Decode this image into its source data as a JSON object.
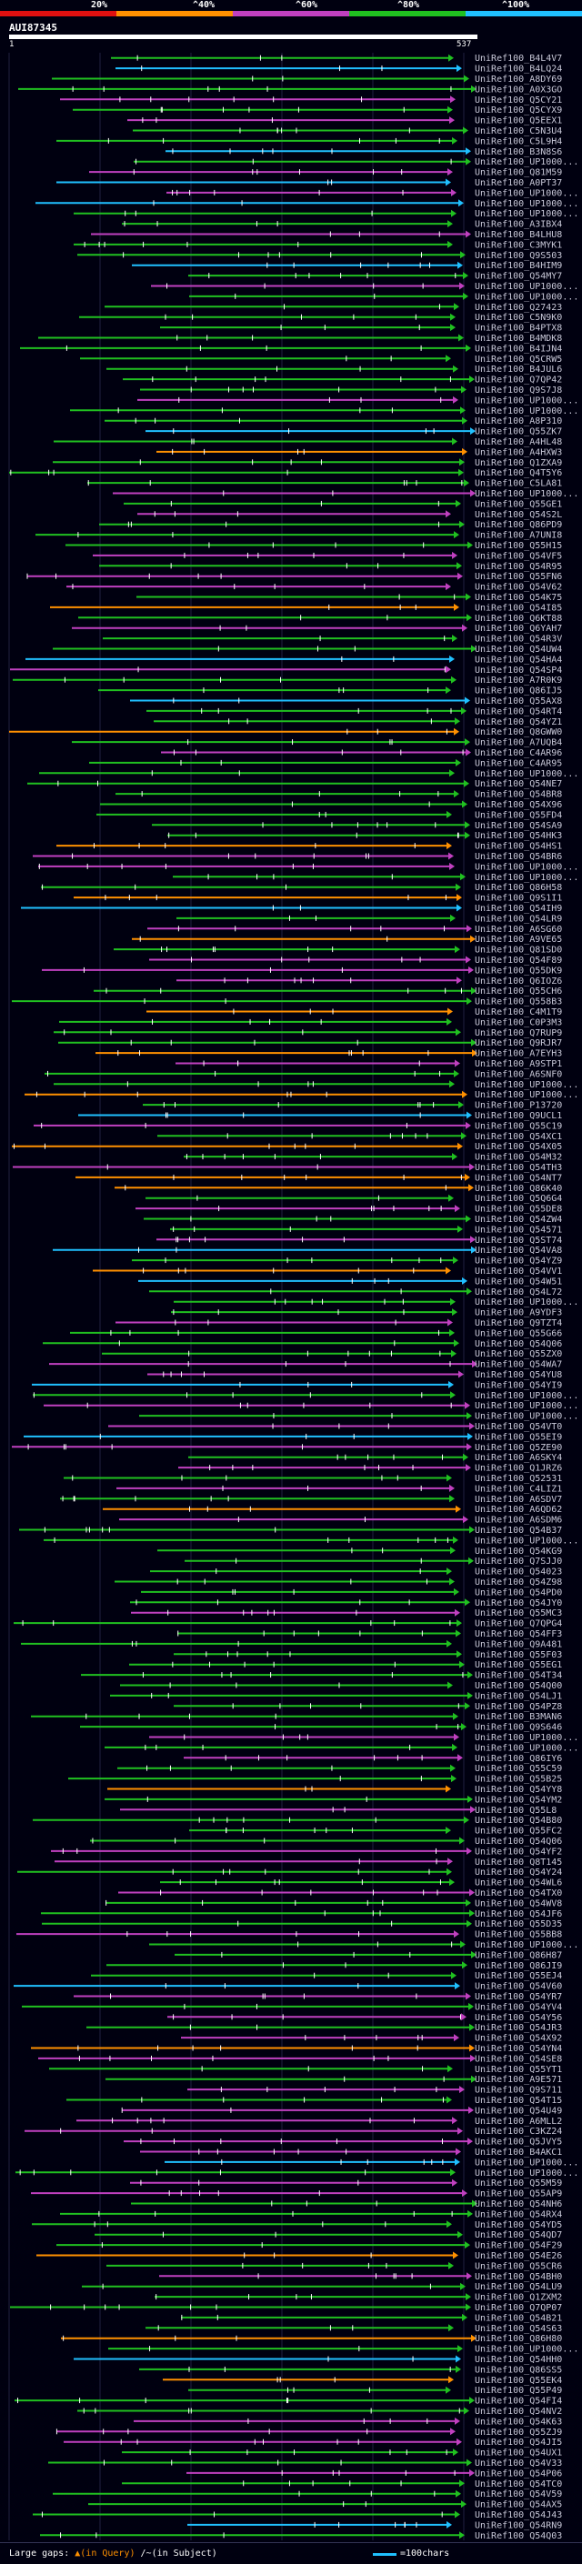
{
  "legend": {
    "labels": [
      "20%",
      "^40%",
      "^60%",
      "^80%",
      "^100%"
    ],
    "colors": [
      "#e01010",
      "#ff9000",
      "#c040c0",
      "#20c020",
      "#20c0ff"
    ]
  },
  "query": {
    "id": "AUI87345",
    "start": "1",
    "end": "537"
  },
  "hits": [
    "UniRef100_B4L4V7",
    "UniRef100_B4LQ24",
    "UniRef100_A8DY69",
    "UniRef100_A0X3GO",
    "UniRef100_Q5CY21",
    "UniRef100_Q5CYX9",
    "UniRef100_Q5EEX1",
    "UniRef100_C5N3U4",
    "UniRef100_C5L9H4",
    "UniRef100_B3N8S6",
    "UniRef100_UP1000...",
    "UniRef100_Q81M59",
    "UniRef100_A0PT37",
    "UniRef100_UP1000...",
    "UniRef100_UP1000...",
    "UniRef100_UP1000...",
    "UniRef100_A3IBX4",
    "UniRef100_B4LHU8",
    "UniRef100_C3MYK1",
    "UniRef100_Q9S503",
    "UniRef100_B4HIM9",
    "UniRef100_Q54MY7",
    "UniRef100_UP1000...",
    "UniRef100_UP1000...",
    "UniRef100_Q27423",
    "UniRef100_C5N9K0",
    "UniRef100_B4PTX8",
    "UniRef100_B4MDK8",
    "UniRef100_B4IJN4",
    "UniRef100_Q5CRW5",
    "UniRef100_B4JUL6",
    "UniRef100_Q7QP42",
    "UniRef100_Q9S7J8",
    "UniRef100_UP1000...",
    "UniRef100_UP1000...",
    "UniRef100_A8P310",
    "UniRef100_Q55ZK7",
    "UniRef100_A4HL48",
    "UniRef100_A4HXW3",
    "UniRef100_Q1ZXA9",
    "UniRef100_Q4T5Y6",
    "UniRef100_C5LA81",
    "UniRef100_UP1000...",
    "UniRef100_Q55GE1",
    "UniRef100_Q54S2L",
    "UniRef100_Q86PD9",
    "UniRef100_A7UNI8",
    "UniRef100_Q55H15",
    "UniRef100_Q54VF5",
    "UniRef100_Q54R95",
    "UniRef100_Q55FN6",
    "UniRef100_Q54V62",
    "UniRef100_Q54K75",
    "UniRef100_Q54I85",
    "UniRef100_Q6KT88",
    "UniRef100_Q6YAH7",
    "UniRef100_Q54R3V",
    "UniRef100_Q54UW4",
    "UniRef100_Q54HA4",
    "UniRef100_Q54SP4",
    "UniRef100_A7R0K9",
    "UniRef100_Q86IJ5",
    "UniRef100_Q55AX8",
    "UniRef100_Q54RT4",
    "UniRef100_Q54YZ1",
    "UniRef100_Q8GWW0",
    "UniRef100_A7UQB4",
    "UniRef100_C4AR96",
    "UniRef100_C4AR95",
    "UniRef100_UP1000...",
    "UniRef100_Q54NE7",
    "UniRef100_Q54BR8",
    "UniRef100_Q54X96",
    "UniRef100_Q55FD4",
    "UniRef100_Q54SA9",
    "UniRef100_Q54HK3",
    "UniRef100_Q54HS1",
    "UniRef100_Q54BR6",
    "UniRef100_UP1000...",
    "UniRef100_UP1000...",
    "UniRef100_Q86H58",
    "UniRef100_Q9S1I1",
    "UniRef100_Q54IH9",
    "UniRef100_Q54LR9",
    "UniRef100_A6SG60",
    "UniRef100_A9VE65",
    "UniRef100_Q81SD0",
    "UniRef100_Q54F89",
    "UniRef100_Q55DK9",
    "UniRef100_Q6IOZ6",
    "UniRef100_Q55CH6",
    "UniRef100_Q558B3",
    "UniRef100_C4M1T9",
    "UniRef100_C0P3M3",
    "UniRef100_Q7RUP9",
    "UniRef100_Q9RJR7",
    "UniRef100_A7EYH3",
    "UniRef100_A9STP1",
    "UniRef100_A6SNF0",
    "UniRef100_UP1000...",
    "UniRef100_UP1000...",
    "UniRef100_P13720",
    "UniRef100_Q9UCL1",
    "UniRef100_Q55C19",
    "UniRef100_Q54XC1",
    "UniRef100_Q54X05",
    "UniRef100_Q54M32",
    "UniRef100_Q54TH3",
    "UniRef100_Q54NT7",
    "UniRef100_Q86K40",
    "UniRef100_Q5Q6G4",
    "UniRef100_Q55DE8",
    "UniRef100_Q54ZW4",
    "UniRef100_Q54571",
    "UniRef100_Q5ST74",
    "UniRef100_Q54VA8",
    "UniRef100_Q54YZ9",
    "UniRef100_Q54VV1",
    "UniRef100_Q54W51",
    "UniRef100_Q54L72",
    "UniRef100_UP1000...",
    "UniRef100_A9YDF3",
    "UniRef100_Q9TZT4",
    "UniRef100_Q55G66",
    "UniRef100_Q54Q06",
    "UniRef100_Q55ZX0",
    "UniRef100_Q54WA7",
    "UniRef100_Q54YU8",
    "UniRef100_Q54YI9",
    "UniRef100_UP1000...",
    "UniRef100_UP1000...",
    "UniRef100_UP1000...",
    "UniRef100_Q54VT0",
    "UniRef100_Q55EI9",
    "UniRef100_Q5ZE90",
    "UniRef100_A6SKY4",
    "UniRef100_Q1JRZ6",
    "UniRef100_Q52531",
    "UniRef100_C4LIZ1",
    "UniRef100_A6SDV7",
    "UniRef100_A6QD62",
    "UniRef100_A6SDM6",
    "UniRef100_Q54B37",
    "UniRef100_UP1000...",
    "UniRef100_Q54KG9",
    "UniRef100_Q7SJJ0",
    "UniRef100_Q54023",
    "UniRef100_Q54Z98",
    "UniRef100_Q54PD0",
    "UniRef100_Q54JY0",
    "UniRef100_Q55MC3",
    "UniRef100_Q7QPG4",
    "UniRef100_Q54FF3",
    "UniRef100_Q9A481",
    "UniRef100_Q55F03",
    "UniRef100_Q55EG1",
    "UniRef100_Q54T34",
    "UniRef100_Q54Q00",
    "UniRef100_Q54LJ1",
    "UniRef100_Q54PZ8",
    "UniRef100_B3MAN6",
    "UniRef100_Q9S646",
    "UniRef100_UP1000...",
    "UniRef100_UP1000...",
    "UniRef100_Q86IY6",
    "UniRef100_Q55C59",
    "UniRef100_Q55B25",
    "UniRef100_Q54YY8",
    "UniRef100_Q54YM2",
    "UniRef100_Q55L8",
    "UniRef100_Q54B80",
    "UniRef100_Q55FC2",
    "UniRef100_Q54Q06",
    "UniRef100_Q54YF2",
    "UniRef100_Q8T145",
    "UniRef100_Q54Y24",
    "UniRef100_Q54WL6",
    "UniRef100_Q54TX0",
    "UniRef100_Q54WV8",
    "UniRef100_Q54JF6",
    "UniRef100_Q55D35",
    "UniRef100_Q55BB8",
    "UniRef100_UP1000...",
    "UniRef100_Q86H87",
    "UniRef100_Q86JI9",
    "UniRef100_Q55EJ4",
    "UniRef100_Q54V60",
    "UniRef100_Q54YR7",
    "UniRef100_Q54YV4",
    "UniRef100_Q54Y56",
    "UniRef100_Q54JR3",
    "UniRef100_Q54X92",
    "UniRef100_Q54YN4",
    "UniRef100_Q54SE8",
    "UniRef100_Q55YT1",
    "UniRef100_A9E571",
    "UniRef100_Q9S711",
    "UniRef100_Q54T15",
    "UniRef100_Q54U49",
    "UniRef100_A6MLL2",
    "UniRef100_C3KZ24",
    "UniRef100_Q5JVY5",
    "UniRef100_B4AKC1",
    "UniRef100_UP1000...",
    "UniRef100_UP1000...",
    "UniRef100_Q55M59",
    "UniRef100_Q55AP9",
    "UniRef100_Q54NH6",
    "UniRef100_Q54RX4",
    "UniRef100_Q54YD5",
    "UniRef100_Q54QD7",
    "UniRef100_Q54F29",
    "UniRef100_Q54E26",
    "UniRef100_Q55CR6",
    "UniRef100_Q54BH0",
    "UniRef100_Q54LU9",
    "UniRef100_Q1ZXM2",
    "UniRef100_Q7QP07",
    "UniRef100_Q54B21",
    "UniRef100_Q54S63",
    "UniRef100_Q86H80",
    "UniRef100_UP1000...",
    "UniRef100_Q54HH0",
    "UniRef100_Q86SS5",
    "UniRef100_Q55EK4",
    "UniRef100_Q55P49",
    "UniRef100_Q54FI4",
    "UniRef100_Q54NV2",
    "UniRef100_Q54K63",
    "UniRef100_Q55ZJ9",
    "UniRef100_Q54JI5",
    "UniRef100_Q54UX1",
    "UniRef100_Q54V33",
    "UniRef100_Q54P06",
    "UniRef100_Q54TC0",
    "UniRef100_Q54V59",
    "UniRef100_Q54AX5",
    "UniRef100_Q54J43",
    "UniRef100_Q54RN9",
    "UniRef100_Q54Q03"
  ],
  "footer": {
    "gaps_label": "Large gaps:",
    "gaps_query": "▲(in Query)",
    "gaps_subject": "/~(in Subject)",
    "scale_label": "=100chars"
  }
}
